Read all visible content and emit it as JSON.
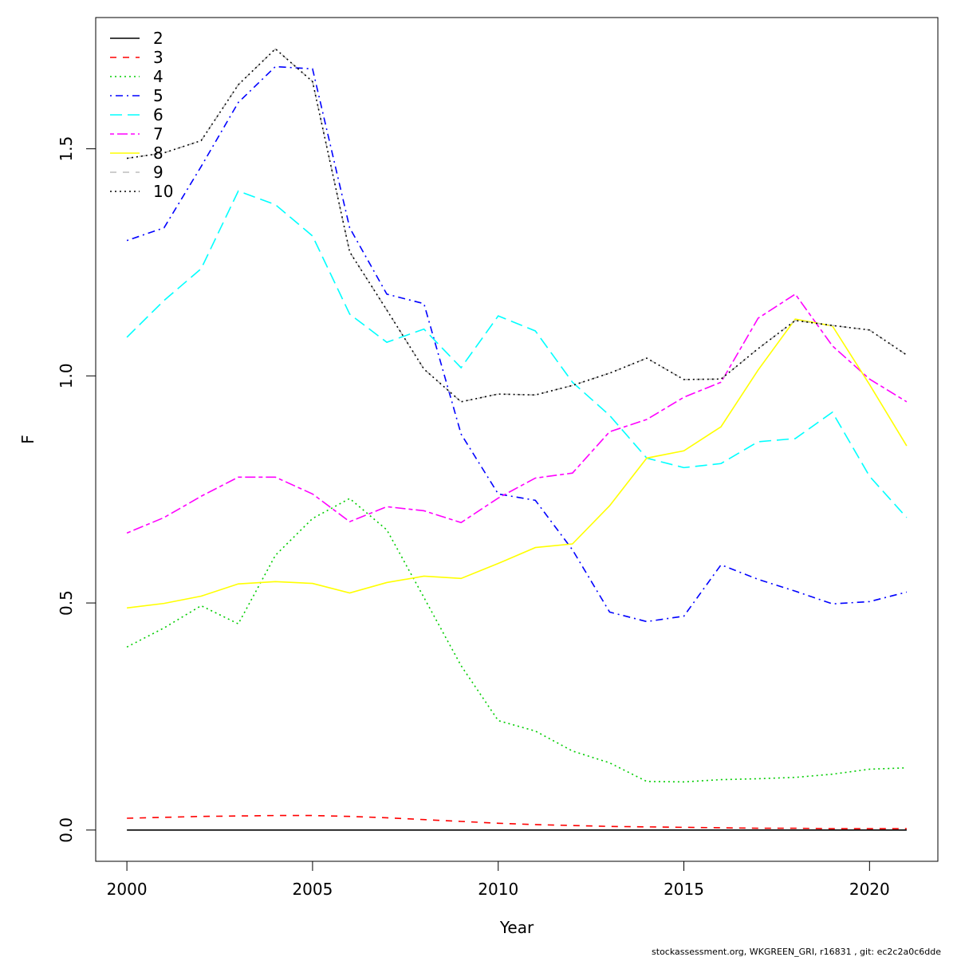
{
  "chart_data": {
    "type": "line",
    "xlabel": "Year",
    "ylabel": "F",
    "footnote": "stockassessment.org, WKGREEN_GRI, r16831 , git: ec2c2a0c6dde",
    "x": [
      2000,
      2001,
      2002,
      2003,
      2004,
      2005,
      2006,
      2007,
      2008,
      2009,
      2010,
      2011,
      2012,
      2013,
      2014,
      2015,
      2016,
      2017,
      2018,
      2019,
      2020,
      2021
    ],
    "xlim": [
      1999.16,
      2021.84
    ],
    "xticks": [
      2000,
      2005,
      2010,
      2015,
      2020
    ],
    "ylim": [
      -0.0688,
      1.789
    ],
    "yticks": [
      {
        "value": 0,
        "label": "0.0"
      },
      0.5,
      {
        "value": 1,
        "label": "1.0"
      },
      1.5
    ],
    "legend": "top-left",
    "series": [
      {
        "name": "2",
        "color": "#000000",
        "linestyle": "solid",
        "values": [
          0,
          0,
          0,
          0,
          0,
          0,
          0,
          0,
          0,
          0,
          0,
          0,
          0,
          0,
          0,
          0,
          0,
          0,
          0,
          0,
          0,
          0
        ]
      },
      {
        "name": "3",
        "color": "#ff0000",
        "linestyle": "dashed",
        "values": [
          0.026,
          0.028,
          0.03,
          0.031,
          0.032,
          0.032,
          0.03,
          0.027,
          0.023,
          0.019,
          0.015,
          0.012,
          0.01,
          0.008,
          0.007,
          0.006,
          0.005,
          0.004,
          0.004,
          0.003,
          0.003,
          0.003
        ]
      },
      {
        "name": "4",
        "color": "#00cd00",
        "linestyle": "dotted",
        "values": [
          0.403,
          0.445,
          0.494,
          0.454,
          0.605,
          0.686,
          0.73,
          0.661,
          0.512,
          0.362,
          0.241,
          0.218,
          0.174,
          0.148,
          0.107,
          0.106,
          0.111,
          0.113,
          0.116,
          0.123,
          0.134,
          0.137
        ]
      },
      {
        "name": "5",
        "color": "#0000ff",
        "linestyle": "dotdash",
        "values": [
          1.298,
          1.326,
          1.461,
          1.602,
          1.681,
          1.676,
          1.326,
          1.18,
          1.159,
          0.872,
          0.74,
          0.726,
          0.617,
          0.48,
          0.459,
          0.471,
          0.584,
          0.552,
          0.526,
          0.498,
          0.503,
          0.524
        ]
      },
      {
        "name": "6",
        "color": "#00ffff",
        "linestyle": "longdash",
        "values": [
          1.085,
          1.166,
          1.236,
          1.407,
          1.377,
          1.308,
          1.136,
          1.074,
          1.103,
          1.018,
          1.132,
          1.099,
          0.986,
          0.913,
          0.819,
          0.798,
          0.807,
          0.855,
          0.862,
          0.92,
          0.779,
          0.688
        ]
      },
      {
        "name": "7",
        "color": "#ff00ff",
        "linestyle": "twodash",
        "values": [
          0.654,
          0.688,
          0.735,
          0.777,
          0.777,
          0.74,
          0.679,
          0.712,
          0.703,
          0.677,
          0.731,
          0.775,
          0.786,
          0.877,
          0.904,
          0.953,
          0.986,
          1.127,
          1.18,
          1.066,
          0.993,
          0.943
        ]
      },
      {
        "name": "8",
        "color": "#ffff00",
        "linestyle": "solid",
        "values": [
          0.489,
          0.499,
          0.515,
          0.542,
          0.547,
          0.543,
          0.522,
          0.545,
          0.559,
          0.554,
          0.587,
          0.622,
          0.63,
          0.714,
          0.819,
          0.835,
          0.888,
          1.013,
          1.125,
          1.11,
          0.981,
          0.846
        ]
      },
      {
        "name": "9",
        "color": "#bebebe",
        "linestyle": "dashed",
        "values": [
          1.479,
          1.491,
          1.518,
          1.641,
          1.72,
          1.648,
          1.273,
          1.145,
          1.015,
          0.943,
          0.96,
          0.958,
          0.979,
          1.006,
          1.039,
          0.992,
          0.993,
          1.06,
          1.122,
          1.111,
          1.101,
          1.046
        ]
      },
      {
        "name": "10",
        "color": "#000000",
        "linestyle": "dotted",
        "values": [
          1.479,
          1.491,
          1.518,
          1.641,
          1.72,
          1.648,
          1.273,
          1.145,
          1.015,
          0.943,
          0.96,
          0.958,
          0.979,
          1.006,
          1.039,
          0.992,
          0.993,
          1.06,
          1.122,
          1.111,
          1.101,
          1.046
        ]
      }
    ]
  }
}
